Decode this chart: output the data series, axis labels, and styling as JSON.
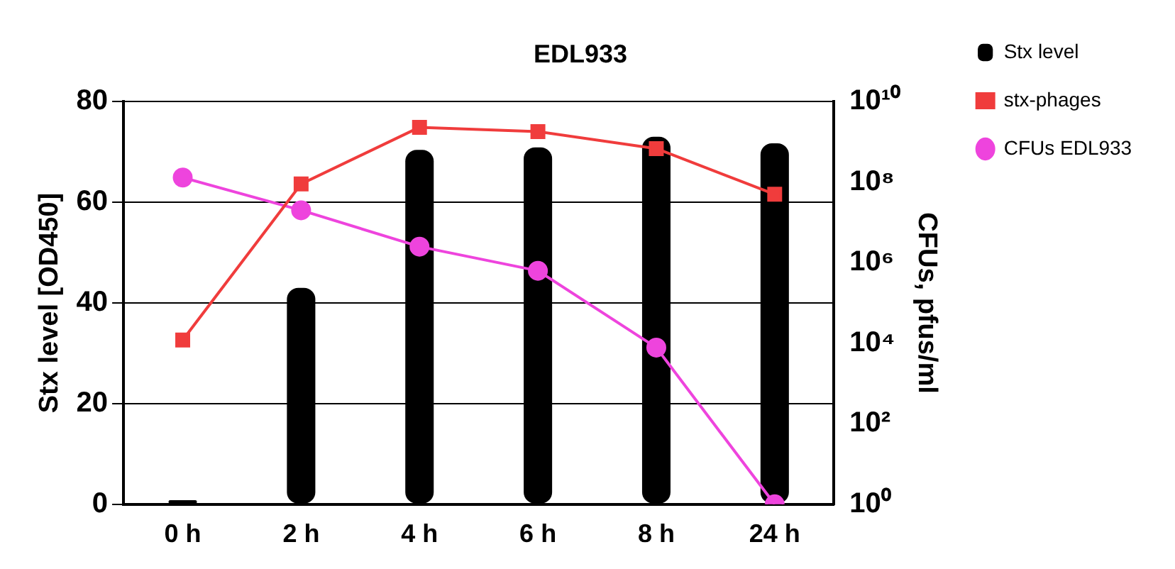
{
  "chart_data": {
    "type": "bar",
    "title": "EDL933",
    "ylabel": "Stx level [OD450]",
    "y2label": "CFUs, pfus/ml",
    "categories": [
      "0 h",
      "2 h",
      "4 h",
      "6 h",
      "8 h",
      "24 h"
    ],
    "series": [
      {
        "name": "Stx level",
        "color": "#000000",
        "values": [
          0.8,
          43,
          70.4,
          70.9,
          73,
          71.7
        ]
      },
      {
        "name": "stx-phages",
        "type": "line",
        "axis": "y2",
        "color": "#f03c3c",
        "marker": "square",
        "values": [
          12000,
          90000000,
          2300000000,
          1800000000,
          680000000,
          50000000
        ]
      },
      {
        "name": "CFUs EDL933",
        "type": "line",
        "axis": "y2",
        "color": "#ee44dd",
        "marker": "circle",
        "values": [
          130000000,
          20000000,
          2500000,
          630000,
          7800,
          1
        ]
      }
    ],
    "ylim": [
      0,
      80
    ],
    "yticks": [
      0,
      20,
      40,
      60,
      80
    ],
    "y2lim": [
      1,
      10000000000
    ],
    "y2ticks": [
      {
        "value": 1,
        "label": "10⁰"
      },
      {
        "value": 100,
        "label": "10²"
      },
      {
        "value": 10000,
        "label": "10⁴"
      },
      {
        "value": 1000000,
        "label": "10⁶"
      },
      {
        "value": 100000000,
        "label": "10⁸"
      },
      {
        "value": 10000000000,
        "label": "10¹⁰"
      }
    ],
    "log": "y2",
    "grid": "y",
    "legend": "right"
  }
}
